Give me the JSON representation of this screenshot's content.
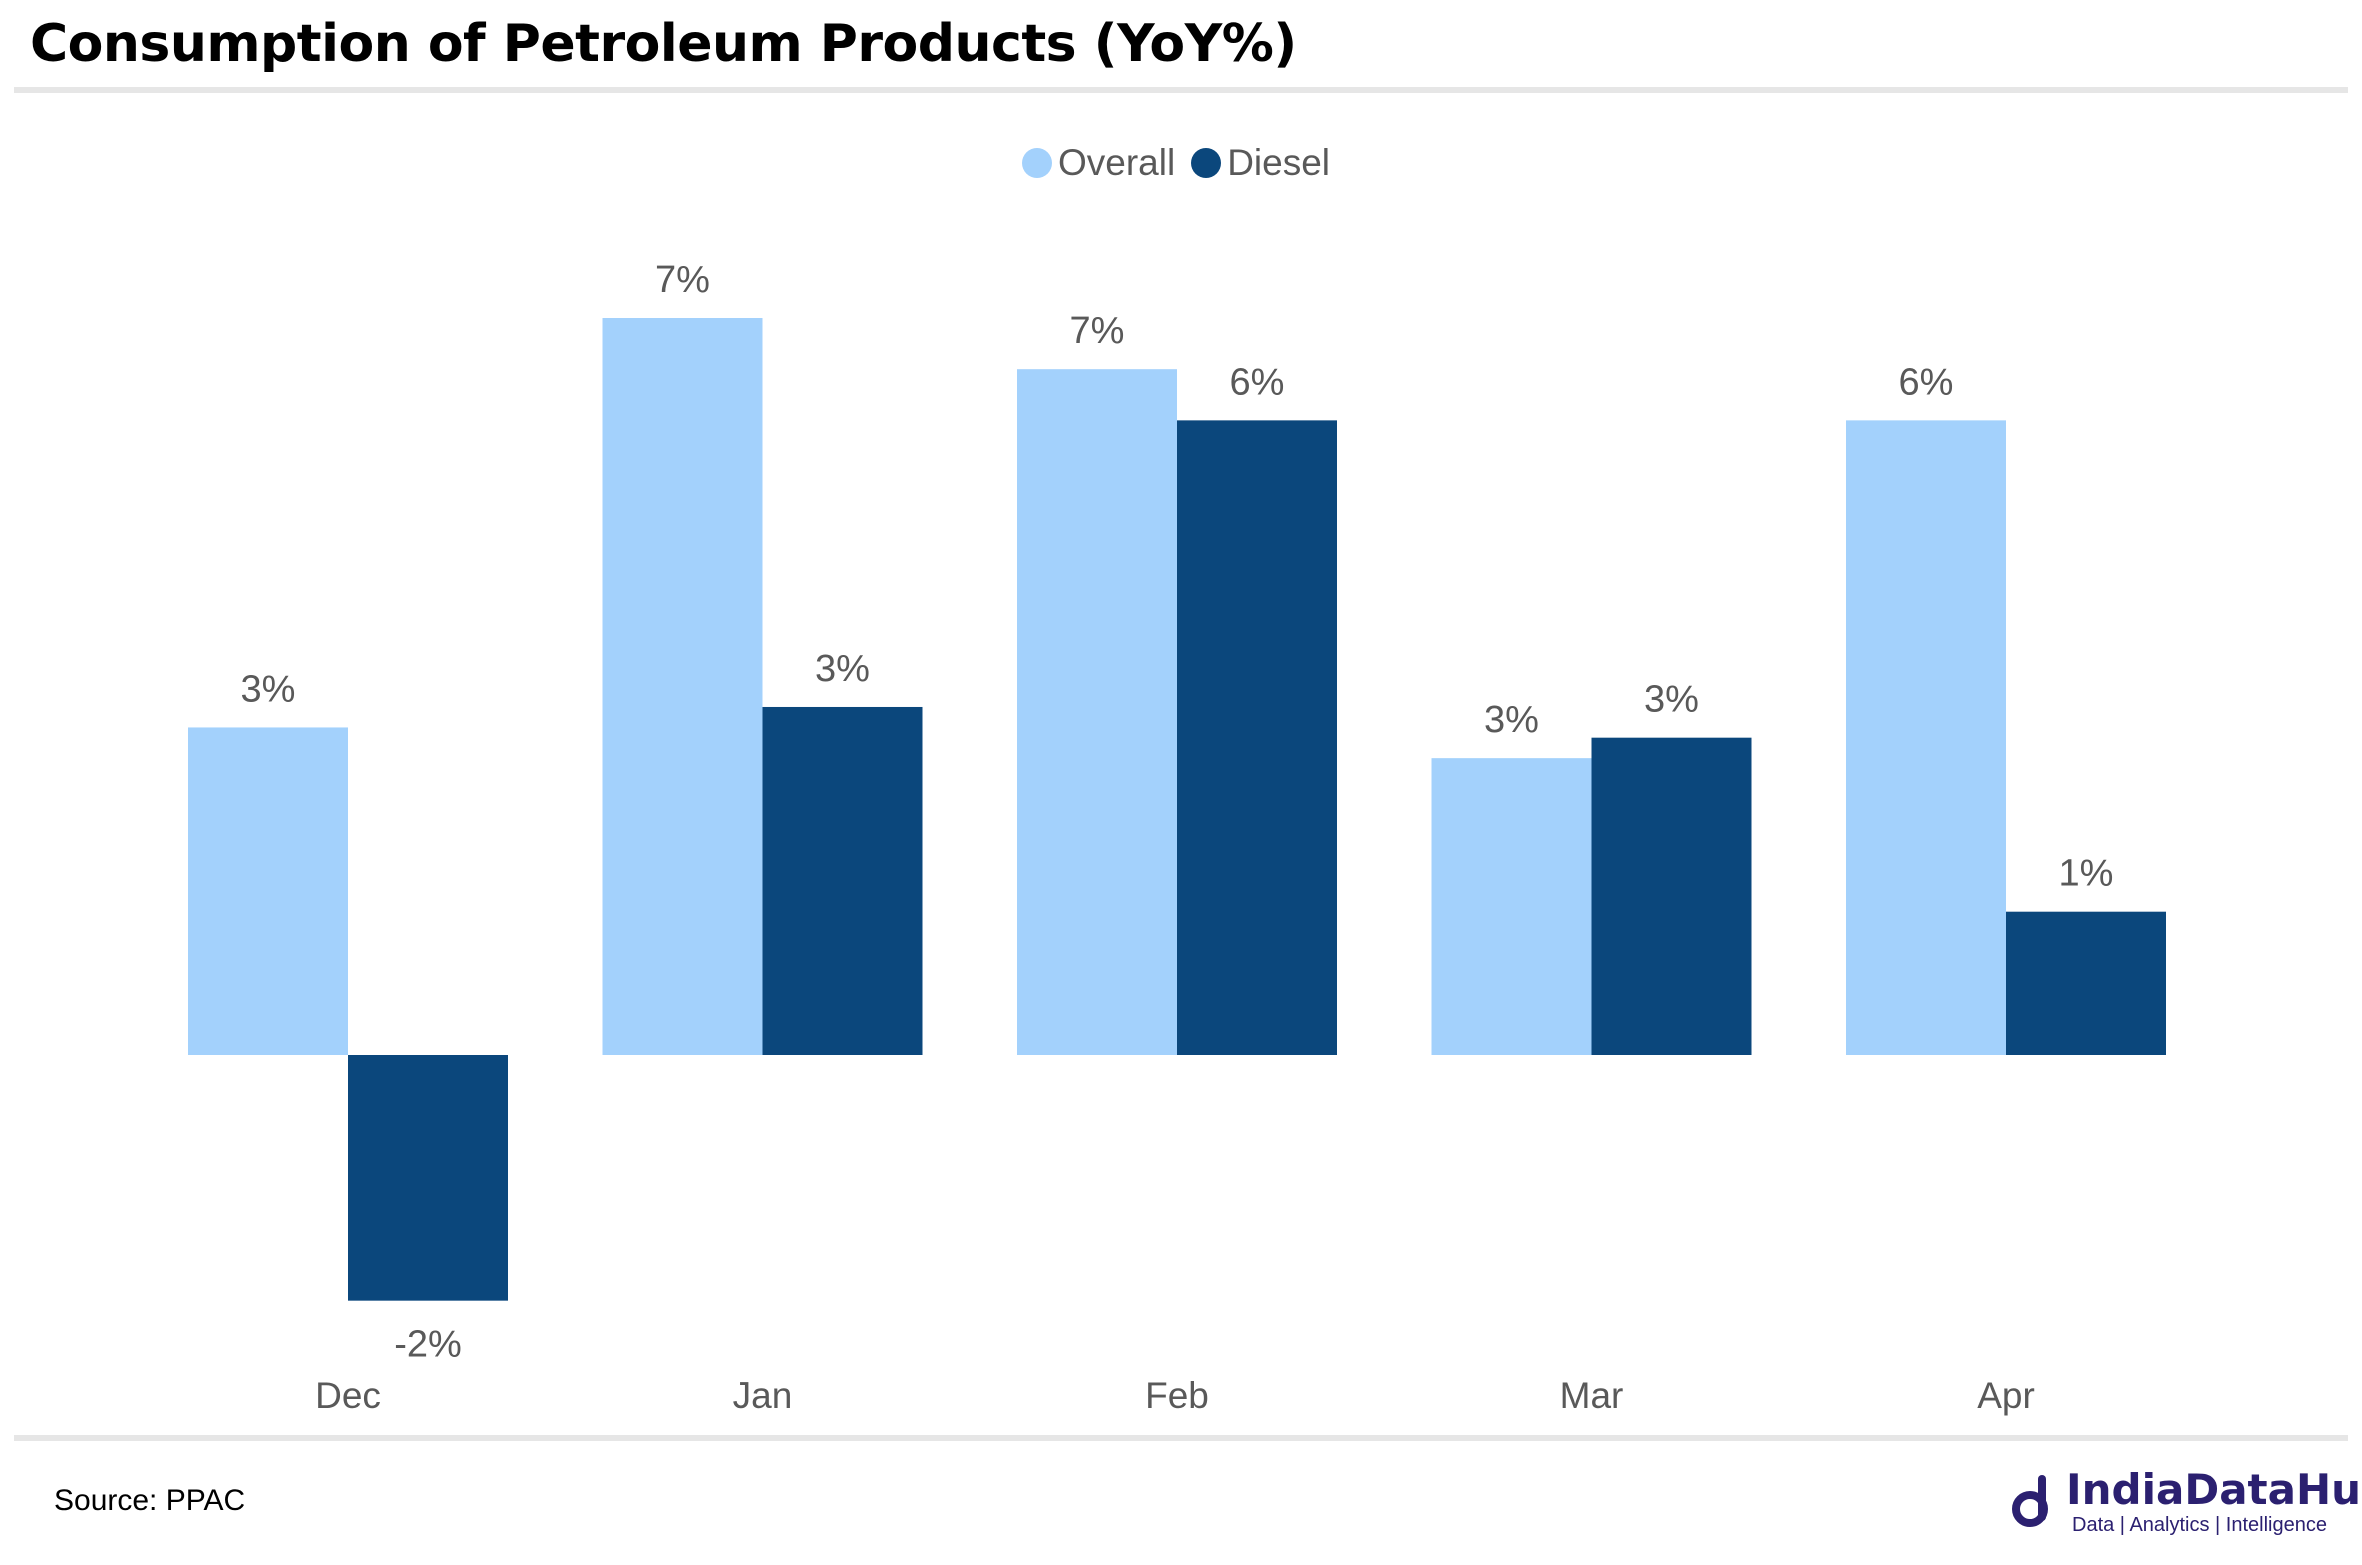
{
  "chart_data": {
    "type": "bar",
    "title": "Consumption of Petroleum Products (YoY%)",
    "categories": [
      "Dec",
      "Jan",
      "Feb",
      "Mar",
      "Apr"
    ],
    "series": [
      {
        "name": "Overall",
        "values": [
          3.2,
          7.2,
          6.7,
          2.9,
          6.2
        ],
        "labels": [
          "3%",
          "7%",
          "7%",
          "3%",
          "6%"
        ],
        "color": "#a3d1fc"
      },
      {
        "name": "Diesel",
        "values": [
          -2.4,
          3.4,
          6.2,
          3.1,
          1.4
        ],
        "labels": [
          "-2%",
          "3%",
          "6%",
          "3%",
          "1%"
        ],
        "color": "#0b477c"
      }
    ],
    "ylim": [
      -2.4,
      7.2
    ],
    "grid": false,
    "legend": "top-center"
  },
  "footer": {
    "source": "Source: PPAC"
  },
  "brand": {
    "name": "IndiaDataHub",
    "tagline": "Data | Analytics | Intelligence",
    "color": "#2b2070"
  }
}
